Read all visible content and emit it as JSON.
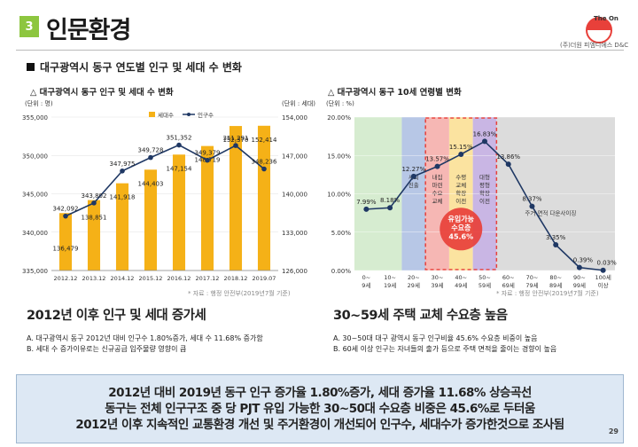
{
  "header": {
    "section_number": "3",
    "title": "인문환경",
    "logo_main": "The One",
    "logo_sub": "(주)더원 피엠디에스 D&C"
  },
  "section_heading": "대구광역시 동구 연도별 인구 및 세대 수 변화",
  "left": {
    "subtitle": "△ 대구광역시 동구 인구 및 세대 수 변화",
    "unit_left": "(단위 : 명)",
    "unit_right": "(단위 : 세대)",
    "source": "* 자료 : 행정 안전부(2019년7월 기준)",
    "heading": "2012년 이후 인구 및 세대 증가세",
    "notes": [
      "A.  대구광역시 동구 2012년 대비 인구수 1.80%증가, 세대 수 11.68% 증가함",
      "B.  세대 수 증가이유로는 신규공급 입주물량 영향이 큼"
    ]
  },
  "right": {
    "subtitle": "△ 대구광역시 동구 10세 연령별 변화",
    "unit": "(단위 : %)",
    "source": "* 자료 : 행정 안전부(2019년7월 기준)",
    "heading": "30~59세 주택 교체 수요층 높음",
    "notes": [
      "A.  30~50대 대구 광역시 동구 인구비율 45.6% 수요층 비중이 높음",
      "B.  60세 이상 인구는 자녀들의 출가 등으로 주택 면적을 줄이는 경향이 높음"
    ]
  },
  "summary": [
    "2012년 대비 2019년 동구 인구 증가율 1.80%증가, 세대 증가율 11.68% 상승곡선",
    "동구는 전체 인구구조 중 당 PJT 유입 가능한 30~50대 수요층 비중은 45.6%로 두터움",
    "2012년 이후 지속적인 교통환경 개선 및 주거환경이 개선되어 인구수, 세대수가 증가한것으로 조사됨"
  ],
  "page_number": "29",
  "colors": {
    "bar": "#f5b117",
    "line": "#1f3864",
    "accent": "#8dc63f",
    "band_red": "#e8403a"
  },
  "chart_data": [
    {
      "type": "bar+line",
      "categories": [
        "2012.12",
        "2013.12",
        "2014.12",
        "2015.12",
        "2016.12",
        "2017.12",
        "2018.12",
        "2019.07"
      ],
      "series": [
        {
          "name": "세대수",
          "kind": "bar",
          "axis": "right",
          "values": [
            136479,
            138851,
            141918,
            144403,
            147154,
            148719,
            152370,
            152414
          ],
          "labels": [
            "136,479",
            "138,851",
            "141,918",
            "144,403",
            "147,154",
            "148,719",
            "152,370",
            "152,414"
          ]
        },
        {
          "name": "인구수",
          "kind": "line",
          "axis": "left",
          "values": [
            342092,
            343802,
            347975,
            349728,
            351352,
            349379,
            351291,
            348236
          ],
          "labels": [
            "342,092",
            "343,802",
            "347,975",
            "349,728",
            "351,352",
            "349,379",
            "351,291",
            "348,236"
          ]
        }
      ],
      "ylim_left": [
        335000,
        355000
      ],
      "yticks_left": [
        "335,000",
        "340,000",
        "345,000",
        "350,000",
        "355,000"
      ],
      "ylim_right": [
        126000,
        154000
      ],
      "yticks_right": [
        "126,000",
        "133,000",
        "140,000",
        "147,000",
        "154,000"
      ],
      "legend": "top"
    },
    {
      "type": "line",
      "categories": [
        "0~9세",
        "10~19세",
        "20~29세",
        "30~39세",
        "40~49세",
        "50~59세",
        "60~69세",
        "70~79세",
        "80~89세",
        "90~99세",
        "100세 이상"
      ],
      "values": [
        7.99,
        8.18,
        12.27,
        13.57,
        15.15,
        16.83,
        13.86,
        8.37,
        3.35,
        0.39,
        0.03
      ],
      "labels": [
        "7.99%",
        "8.18%",
        "12.27%",
        "13.57%",
        "15.15%",
        "16.83%",
        "13.86%",
        "8.37%",
        "3.35%",
        "0.39%",
        "0.03%"
      ],
      "ylim": [
        0,
        20
      ],
      "yticks": [
        "0.00%",
        "5.00%",
        "10.00%",
        "15.00%",
        "20.00%"
      ],
      "bands": [
        {
          "text": "사회 진출",
          "color": "#b7c7e6"
        },
        {
          "text": "내집 마련 수요 교체",
          "color": "#f6b7b4"
        },
        {
          "text": "수평 교체 확장 이전",
          "color": "#fbe3a0"
        },
        {
          "text": "대형 평형 확장 이전",
          "color": "#c9b6e4"
        },
        {
          "text": "주거 면적 다운사이징"
        }
      ],
      "highlight": {
        "lines": [
          "유입가능",
          "수요층",
          "45.6%"
        ]
      }
    }
  ]
}
